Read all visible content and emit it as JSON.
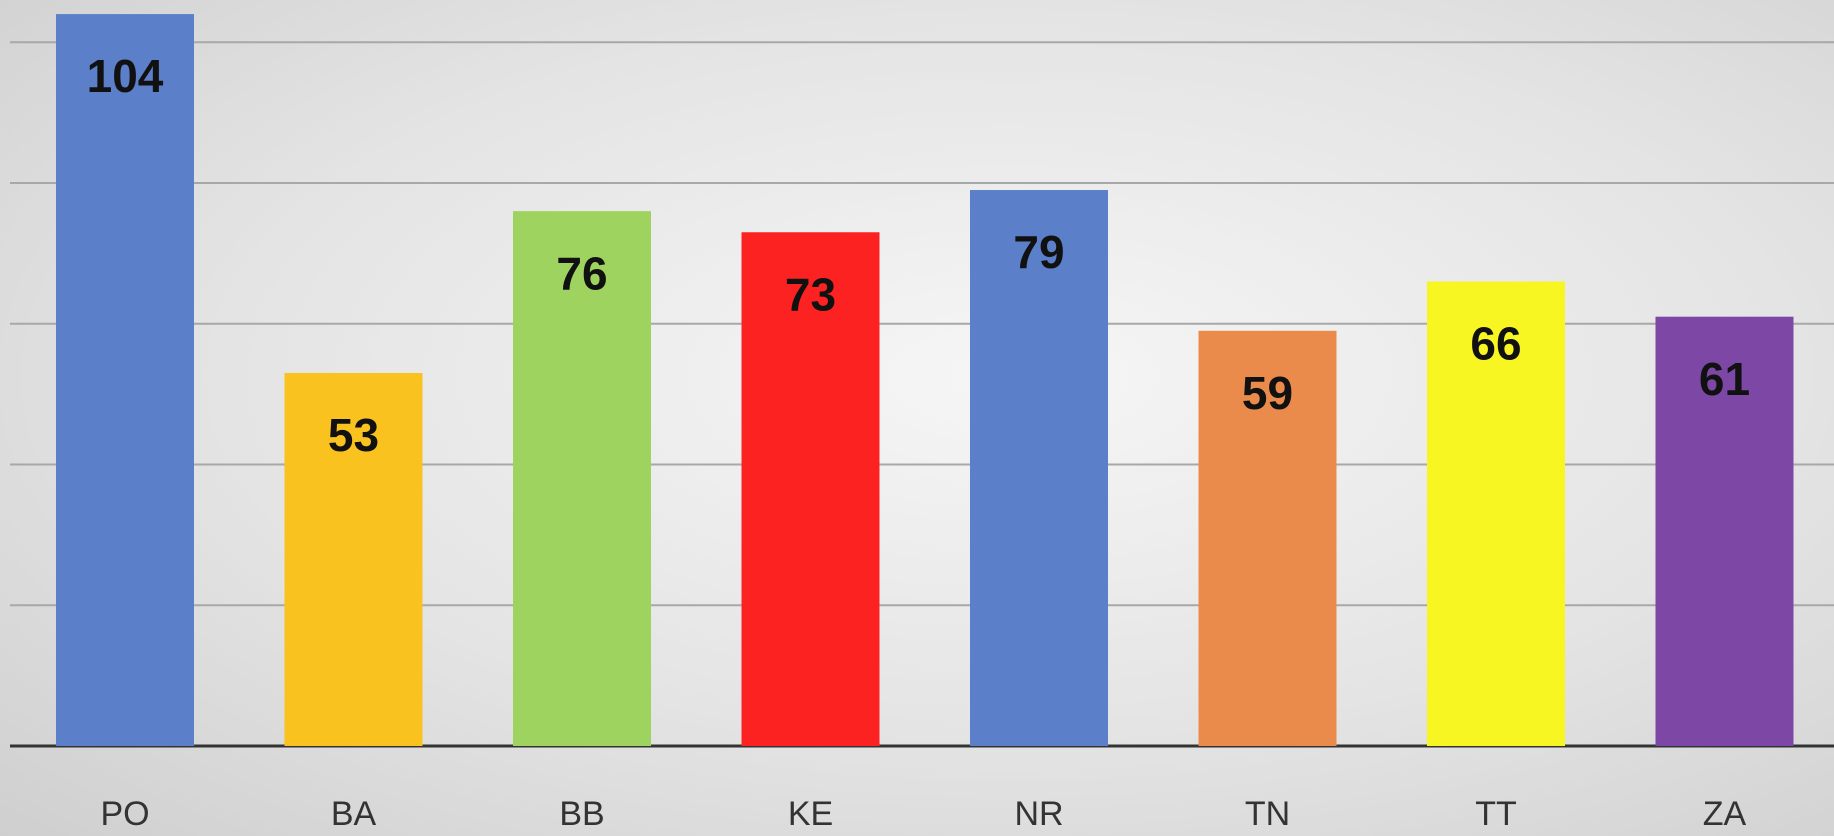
{
  "chart_data": {
    "type": "bar",
    "categories": [
      "PO",
      "BA",
      "BB",
      "KE",
      "NR",
      "TN",
      "TT",
      "ZA"
    ],
    "values": [
      104,
      53,
      76,
      73,
      79,
      59,
      66,
      61
    ],
    "colors": [
      "#5b80c9",
      "#f9c21f",
      "#9fd360",
      "#fd2222",
      "#5b80c9",
      "#eb8b4b",
      "#f8f622",
      "#7d47a6"
    ],
    "ylim": [
      0,
      106
    ],
    "yticks": [
      0,
      20,
      40,
      60,
      80,
      100
    ],
    "grid": true
  }
}
